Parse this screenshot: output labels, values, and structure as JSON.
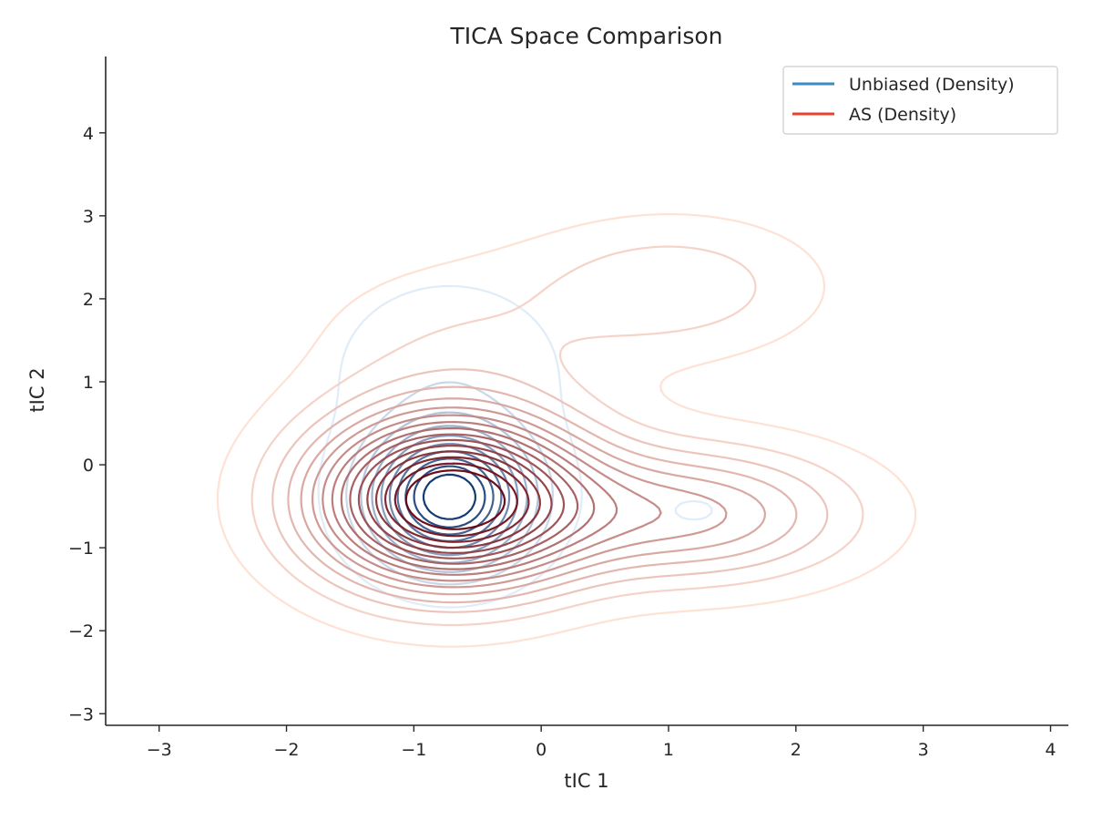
{
  "chart_data": {
    "type": "contour",
    "title": "TICA Space Comparison",
    "xlabel": "tIC 1",
    "ylabel": "tIC 2",
    "xlim": [
      -3.42,
      4.14
    ],
    "ylim": [
      -3.14,
      4.92
    ],
    "xticks": [
      -3,
      -2,
      -1,
      0,
      1,
      2,
      3,
      4
    ],
    "yticks": [
      -3,
      -2,
      -1,
      0,
      1,
      2,
      3,
      4
    ],
    "xtick_labels": [
      "−3",
      "−2",
      "−1",
      "0",
      "1",
      "2",
      "3",
      "4"
    ],
    "ytick_labels": [
      "−3",
      "−2",
      "−1",
      "0",
      "1",
      "2",
      "3",
      "4"
    ],
    "grid": false,
    "legend_position": "upper-right",
    "series": [
      {
        "name": "Unbiased (Density)",
        "color": "#3b8bc2",
        "colormap": [
          "#deebf7",
          "#08306b"
        ],
        "levels": 10,
        "components": [
          {
            "weight": 0.92,
            "mean": [
              -0.72,
              -0.4
            ],
            "std": [
              0.4,
              0.52
            ],
            "rho": 0.0
          },
          {
            "weight": 0.1,
            "mean": [
              -0.72,
              1.1
            ],
            "std": [
              0.6,
              0.75
            ],
            "rho": 0.0
          },
          {
            "weight": 0.04,
            "mean": [
              1.2,
              -0.55
            ],
            "std": [
              0.38,
              0.3
            ],
            "rho": 0.0
          }
        ]
      },
      {
        "name": "AS (Density)",
        "color": "#e8412c",
        "colormap": [
          "#fee0d2",
          "#67000d"
        ],
        "levels": 16,
        "components": [
          {
            "weight": 0.72,
            "mean": [
              -0.72,
              -0.42
            ],
            "std": [
              0.72,
              0.7
            ],
            "rho": 0.0
          },
          {
            "weight": 0.24,
            "mean": [
              1.2,
              -0.6
            ],
            "std": [
              0.85,
              0.55
            ],
            "rho": 0.0
          },
          {
            "weight": 0.1,
            "mean": [
              1.05,
              2.15
            ],
            "std": [
              0.75,
              0.55
            ],
            "rho": 0.0
          },
          {
            "weight": 0.06,
            "mean": [
              -0.6,
              1.5
            ],
            "std": [
              0.85,
              0.7
            ],
            "rho": 0.0
          }
        ]
      }
    ]
  }
}
